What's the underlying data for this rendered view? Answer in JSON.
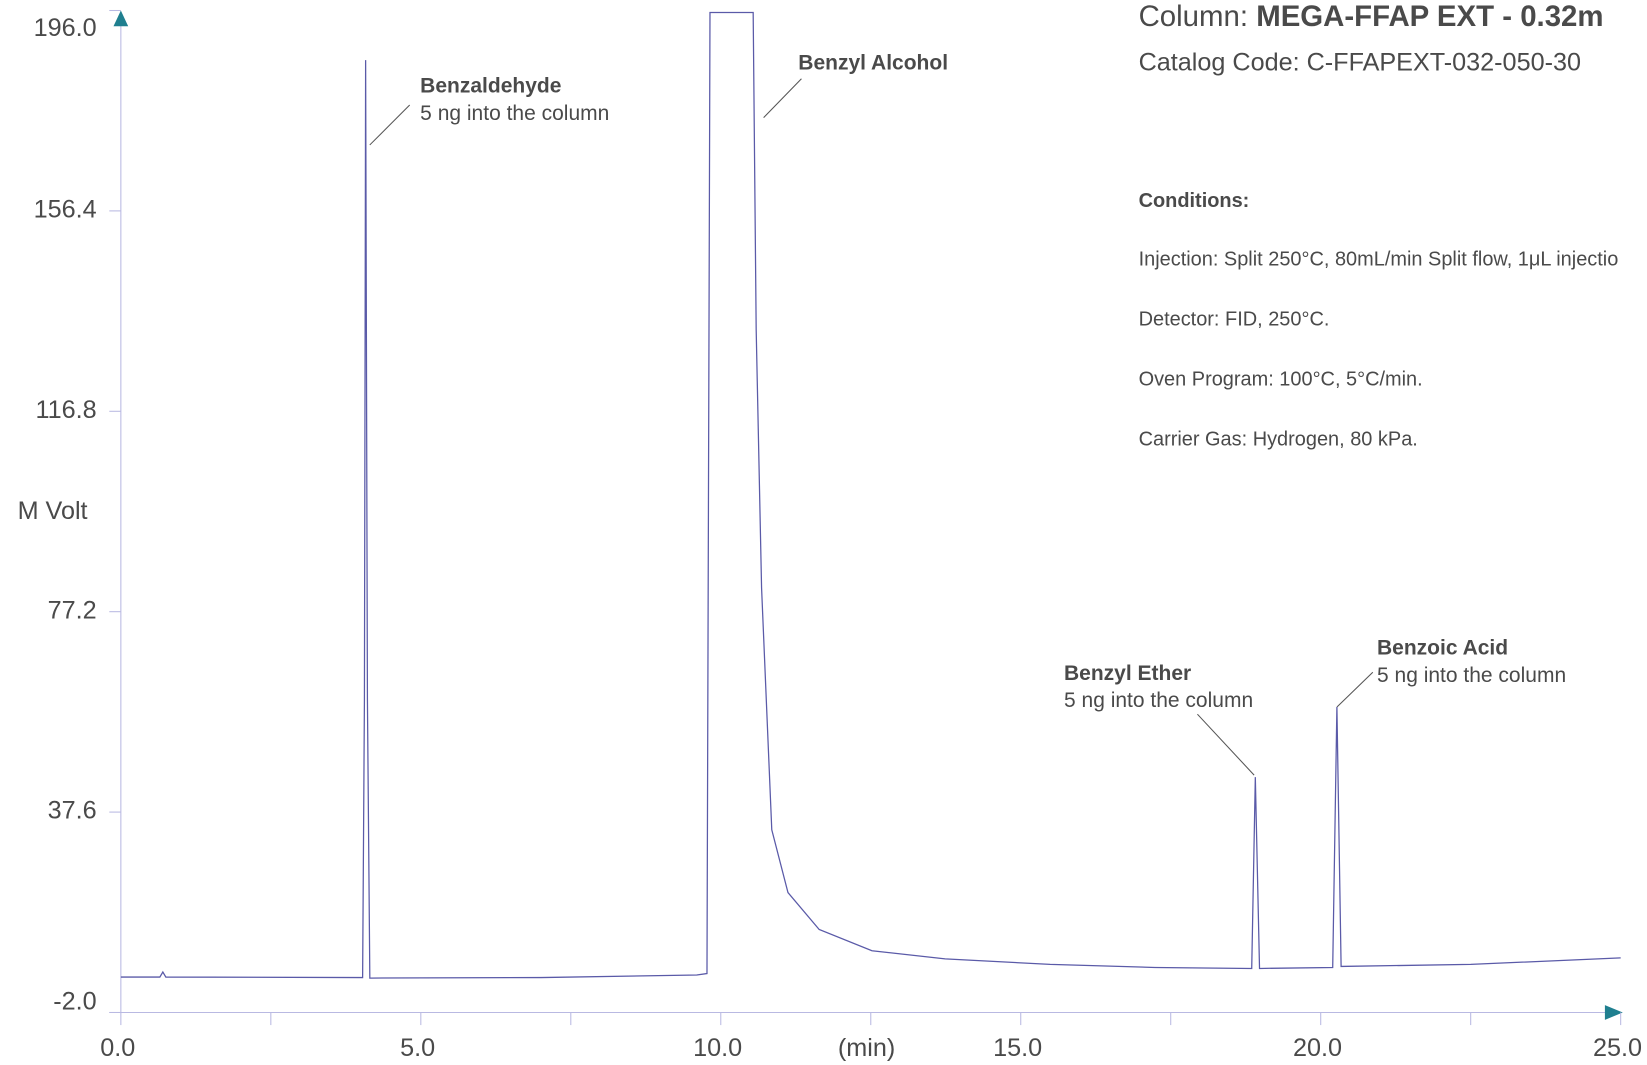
{
  "chart_data": {
    "type": "line",
    "y_label": "M Volt",
    "x_label": "(min)",
    "x": [
      0,
      0.65,
      0.7,
      0.75,
      4.03,
      4.06,
      4.08,
      4.11,
      4.15,
      7.0,
      9.6,
      9.77,
      9.82,
      10.54,
      10.59,
      10.68,
      10.85,
      11.12,
      11.64,
      12.52,
      13.74,
      15.49,
      17.24,
      18.85,
      18.91,
      18.98,
      20.2,
      20.27,
      20.34,
      22.5,
      25.0
    ],
    "series": [
      {
        "color": "#5a5aa8",
        "values": [
          5.0,
          5.0,
          6.0,
          5.0,
          4.9,
          60,
          186.2,
          60,
          4.8,
          4.9,
          5.4,
          5.7,
          195.6,
          195.6,
          133,
          81.9,
          34.1,
          21.7,
          14.4,
          10.2,
          8.6,
          7.5,
          6.9,
          6.7,
          44.5,
          6.7,
          6.9,
          58.4,
          7.1,
          7.5,
          8.8
        ]
      }
    ],
    "xlim": [
      0,
      25
    ],
    "ylim": [
      -2,
      196
    ],
    "xticks": [
      {
        "value": 0,
        "label": "0.0"
      },
      {
        "value": 5,
        "label": "5.0"
      },
      {
        "value": 10,
        "label": "10.0"
      },
      {
        "value": 15,
        "label": "15.0"
      },
      {
        "value": 20,
        "label": "20.0"
      },
      {
        "value": 25,
        "label": "25.0"
      }
    ],
    "xminorticks": [
      2.5,
      7.5,
      12.5,
      17.5,
      22.5
    ],
    "yticks": [
      {
        "value": -2,
        "label": "-2.0"
      },
      37.6,
      77.2,
      116.8,
      156.4,
      {
        "value": 196,
        "label": "196.0"
      }
    ],
    "axis_color": "#b9b9e2",
    "arrow_color": "#1f7f8f",
    "annotations": [
      {
        "label": "Benzaldehyde",
        "note": "5 ng into the column"
      },
      {
        "label": "Benzyl Alcohol"
      },
      {
        "label": "Benzyl Ether",
        "note": "5 ng into the column"
      },
      {
        "label": "Benzoic Acid",
        "note": "5 ng into the column"
      }
    ],
    "info": {
      "column_label": "Column:",
      "column": "MEGA-FFAP EXT - 0.32m",
      "catalog": "Catalog Code: C-FFAPEXT-032-050-30",
      "conditions_title": "Conditions:",
      "conditions": [
        "Injection: Split 250°C, 80mL/min Split flow, 1μL injectio",
        "Detector: FID, 250°C.",
        "Oven Program: 100°C, 5°C/min.",
        "Carrier Gas: Hydrogen, 80 kPa."
      ]
    }
  }
}
